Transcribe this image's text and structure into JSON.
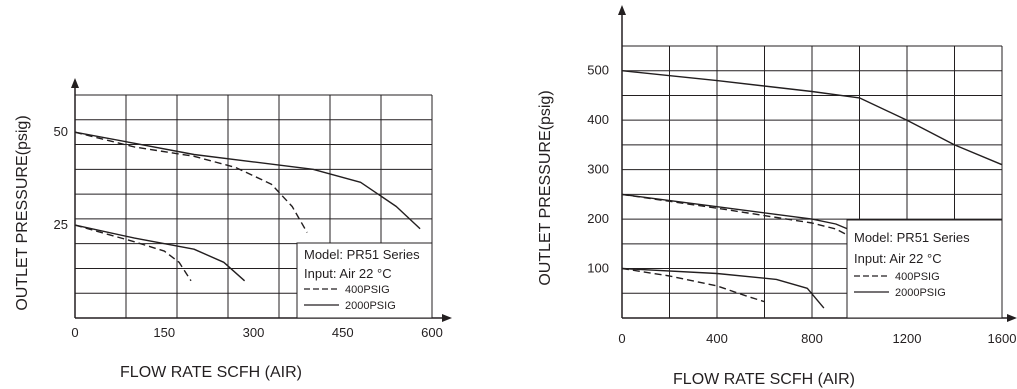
{
  "chart_data": [
    {
      "type": "line",
      "xlabel": "FLOW  RATE  SCFH (AIR)",
      "ylabel": "OUTLET PRESSURE(psig)",
      "xlim": [
        0,
        600
      ],
      "ylim": [
        0,
        60
      ],
      "x_ticks": [
        "0",
        "150",
        "300",
        "450",
        "600"
      ],
      "y_ticks": [
        "25",
        "50"
      ],
      "grid": true,
      "legend": {
        "position": "bottom-right",
        "lines": [
          "Model: PR51 Series",
          "Input: Air 22 °C"
        ],
        "entries": [
          {
            "label": "400PSIG",
            "style": "dashed"
          },
          {
            "label": "2000PSIG",
            "style": "solid"
          }
        ]
      },
      "series": [
        {
          "name": "2000PSIG",
          "style": "solid",
          "curve": "upper",
          "x": [
            0,
            100,
            200,
            300,
            400,
            480,
            540,
            580
          ],
          "y": [
            50,
            47,
            44,
            42,
            40,
            36.5,
            30,
            24
          ]
        },
        {
          "name": "400PSIG",
          "style": "dashed",
          "curve": "upper",
          "x": [
            0,
            100,
            200,
            270,
            330,
            365,
            390
          ],
          "y": [
            50,
            46,
            43.5,
            40.5,
            36,
            30,
            23
          ]
        },
        {
          "name": "2000PSIG",
          "style": "solid",
          "curve": "lower",
          "x": [
            0,
            100,
            200,
            250,
            285
          ],
          "y": [
            25,
            21.5,
            18.5,
            15,
            10
          ]
        },
        {
          "name": "400PSIG",
          "style": "dashed",
          "curve": "lower",
          "x": [
            0,
            100,
            150,
            175,
            195
          ],
          "y": [
            25,
            20.5,
            18,
            15,
            10
          ]
        }
      ]
    },
    {
      "type": "line",
      "xlabel": "FLOW  RATE  SCFH (AIR)",
      "ylabel": "OUTLET PRESSURE(psig)",
      "xlim": [
        0,
        1600
      ],
      "ylim": [
        0,
        550
      ],
      "x_ticks": [
        "0",
        "400",
        "800",
        "1200",
        "1600"
      ],
      "y_ticks": [
        "100",
        "200",
        "300",
        "400",
        "500"
      ],
      "grid": true,
      "legend": {
        "position": "bottom-right",
        "lines": [
          "Model: PR51 Series",
          "Input: Air 22 °C"
        ],
        "entries": [
          {
            "label": "400PSIG",
            "style": "dashed"
          },
          {
            "label": "2000PSIG",
            "style": "solid"
          }
        ]
      },
      "series": [
        {
          "name": "2000PSIG",
          "style": "solid",
          "curve": "upper",
          "x": [
            0,
            400,
            800,
            1000,
            1200,
            1400,
            1600
          ],
          "y": [
            500,
            480,
            458,
            445,
            400,
            350,
            310
          ]
        },
        {
          "name": "2000PSIG",
          "style": "solid",
          "curve": "middle",
          "x": [
            0,
            400,
            800,
            900,
            1000,
            1040
          ],
          "y": [
            250,
            225,
            200,
            190,
            170,
            155
          ]
        },
        {
          "name": "400PSIG",
          "style": "dashed",
          "curve": "middle",
          "x": [
            0,
            400,
            800,
            900,
            960,
            1000
          ],
          "y": [
            250,
            222,
            192,
            180,
            165,
            155
          ]
        },
        {
          "name": "2000PSIG",
          "style": "solid",
          "curve": "lower",
          "x": [
            0,
            400,
            650,
            780,
            850
          ],
          "y": [
            100,
            90,
            78,
            60,
            20
          ]
        },
        {
          "name": "400PSIG",
          "style": "dashed",
          "curve": "lower",
          "x": [
            0,
            200,
            400,
            520,
            600
          ],
          "y": [
            100,
            85,
            65,
            45,
            33
          ]
        }
      ]
    }
  ]
}
